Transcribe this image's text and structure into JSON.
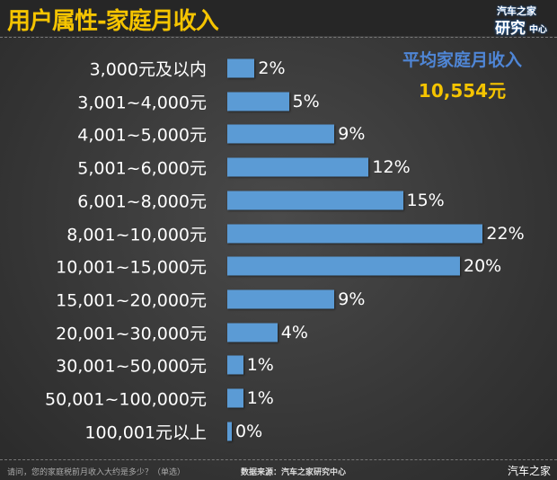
{
  "title": "用户属性-家庭月收入",
  "logo": {
    "line1": "汽车之家",
    "line2": "研究",
    "line3": "中心"
  },
  "average": {
    "label": "平均家庭月收入",
    "value": "10,554元"
  },
  "chart_data": {
    "type": "bar",
    "orientation": "horizontal",
    "categories": [
      "3,000元及以内",
      "3,001~4,000元",
      "4,001~5,000元",
      "5,001~6,000元",
      "6,001~8,000元",
      "8,001~10,000元",
      "10,001~15,000元",
      "15,001~20,000元",
      "20,001~30,000元",
      "30,001~50,000元",
      "50,001~100,000元",
      "100,001元以上"
    ],
    "values": [
      2,
      5,
      9,
      12,
      15,
      22,
      20,
      9,
      4,
      1,
      1,
      0
    ],
    "value_labels": [
      "2%",
      "5%",
      "9%",
      "12%",
      "15%",
      "22%",
      "20%",
      "9%",
      "4%",
      "1%",
      "1%",
      "0%"
    ],
    "unit": "%",
    "bar_color": "#5b9bd5",
    "grid": false
  },
  "footer": {
    "question": "请问，您的家庭税前月收入大约是多少？（单选）",
    "source": "数据来源：汽车之家研究中心",
    "brand": "汽车之家"
  },
  "colors": {
    "title": "#f5c400",
    "avg_label": "#4f86d6",
    "avg_value": "#f5c400",
    "background": "#3a3a3a"
  }
}
